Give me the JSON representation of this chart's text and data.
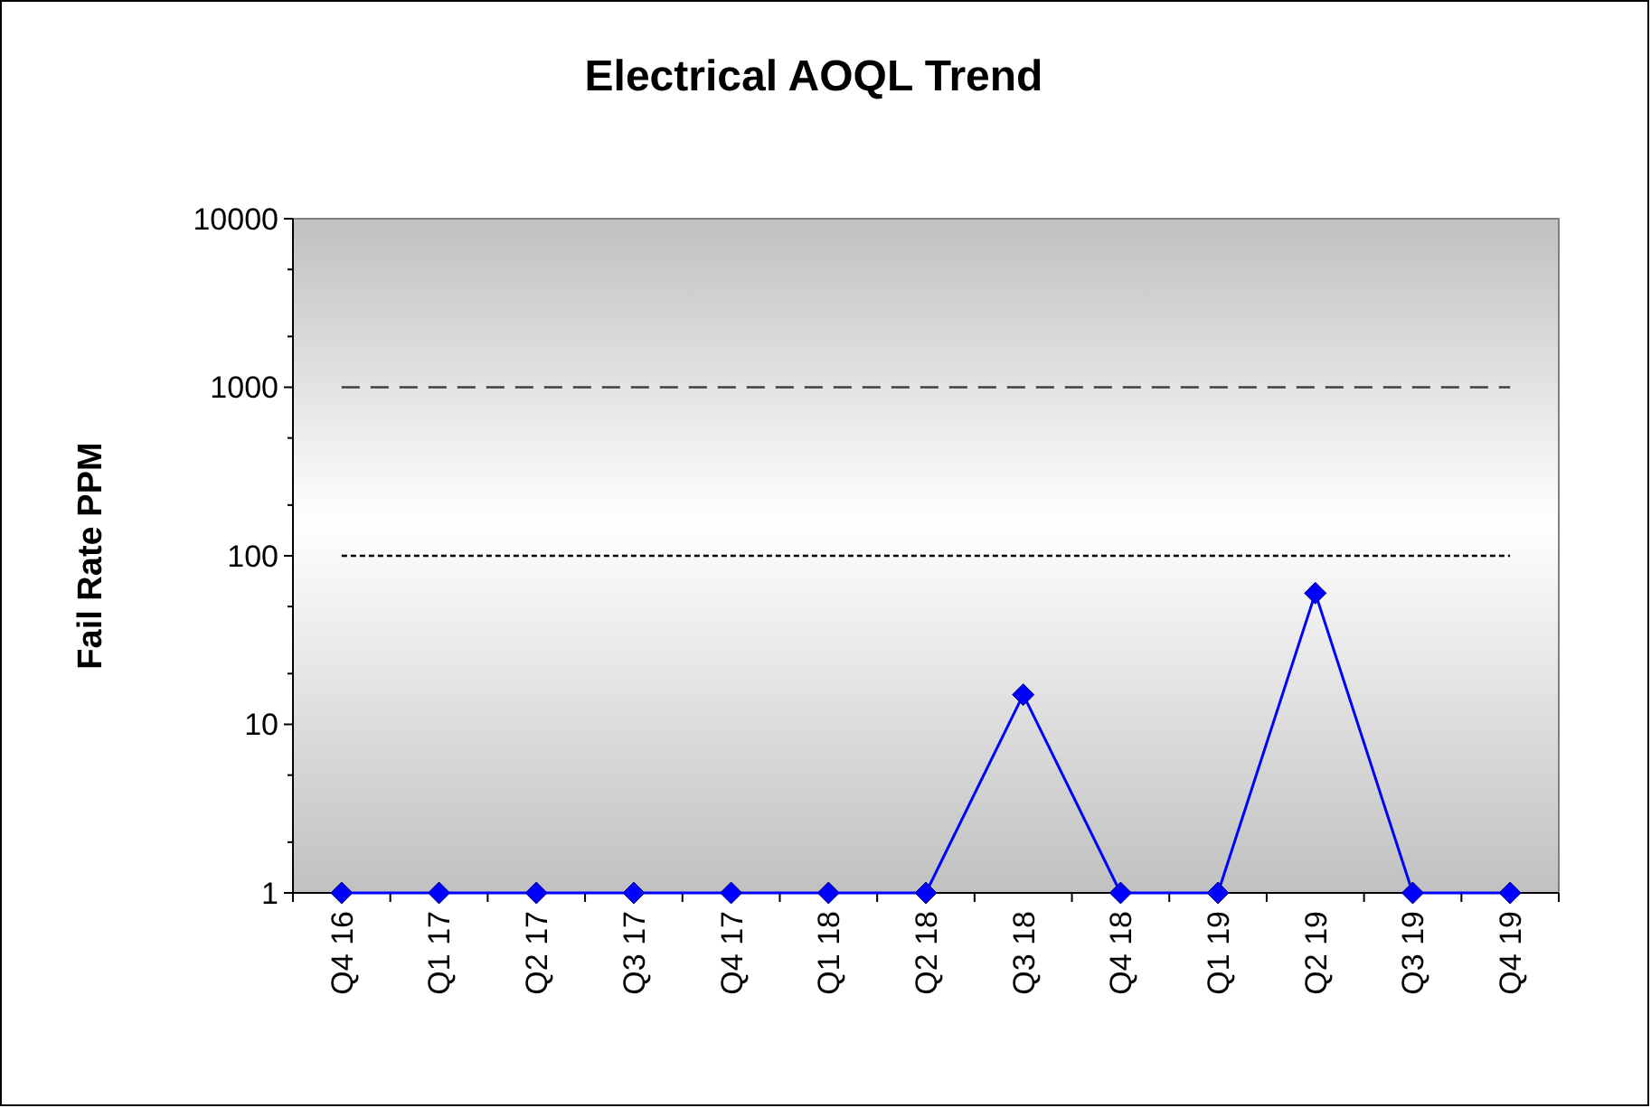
{
  "chart_data": {
    "type": "line",
    "title": "Electrical AOQL  Trend",
    "ylabel": "Fail Rate PPM",
    "categories": [
      "Q4 16",
      "Q1 17",
      "Q2 17",
      "Q3 17",
      "Q4 17",
      "Q1 18",
      "Q2 18",
      "Q3 18",
      "Q4 18",
      "Q1 19",
      "Q2 19",
      "Q3 19",
      "Q4 19"
    ],
    "series": [
      {
        "color": "#0000ff",
        "values": [
          1,
          1,
          1,
          1,
          1,
          1,
          1,
          15,
          1,
          1,
          60,
          1,
          1
        ]
      }
    ],
    "log": true,
    "ylim": [
      1,
      10000
    ],
    "yticks": [
      1,
      {
        "value": 2,
        "label": null
      },
      {
        "value": 5,
        "label": null
      },
      10,
      {
        "value": 20,
        "label": null
      },
      {
        "value": 50,
        "label": null
      },
      100,
      {
        "value": 200,
        "label": null
      },
      {
        "value": 500,
        "label": null
      },
      1000,
      {
        "value": 2000,
        "label": null
      },
      {
        "value": 5000,
        "label": null
      },
      10000
    ],
    "marker": "diamond",
    "line_style": "solid",
    "grid": false,
    "ref_lines": [
      {
        "axis": "y",
        "value": 1000,
        "color": "#404040",
        "line_style": "dashed"
      },
      {
        "axis": "y",
        "value": 100,
        "color": "#000000",
        "line_style": "dotted"
      }
    ]
  }
}
